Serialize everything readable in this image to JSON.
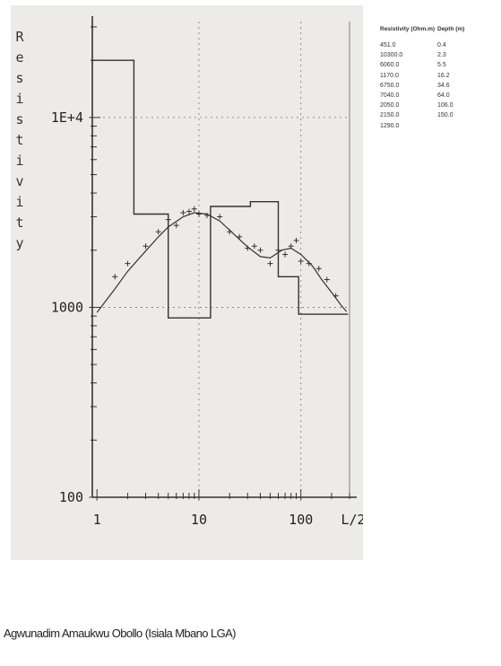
{
  "chart_data": {
    "type": "line",
    "ylabel": "Resistivity",
    "xlabel": "L/2",
    "x_scale": "log",
    "y_scale": "log",
    "xlim": [
      0.9,
      300
    ],
    "ylim": [
      100,
      32000
    ],
    "x_ticks": [
      "1",
      "10",
      "100"
    ],
    "y_ticks": [
      "1E+4",
      "1000",
      "100"
    ],
    "grid": true,
    "layer_model": {
      "name": "",
      "steps": [
        {
          "depth_top": 0.9,
          "depth_bottom": 2.3,
          "resistivity": 20000
        },
        {
          "depth_top": 2.3,
          "depth_bottom": 5.0,
          "resistivity": 3100
        },
        {
          "depth_top": 5.0,
          "depth_bottom": 13.0,
          "resistivity": 880
        },
        {
          "depth_top": 13.0,
          "depth_bottom": 32.0,
          "resistivity": 3400
        },
        {
          "depth_top": 32.0,
          "depth_bottom": 60.0,
          "resistivity": 3600
        },
        {
          "depth_top": 60.0,
          "depth_bottom": 95.0,
          "resistivity": 1450
        },
        {
          "depth_top": 95.0,
          "depth_bottom": 290.0,
          "resistivity": 920
        }
      ]
    },
    "fitted_curve": {
      "name": "",
      "x": [
        1,
        1.5,
        2,
        3,
        4,
        5,
        7,
        9,
        12,
        16,
        20,
        25,
        30,
        40,
        50,
        65,
        80,
        100,
        130,
        160,
        200,
        250,
        280
      ],
      "y": [
        940,
        1250,
        1550,
        1980,
        2350,
        2650,
        3000,
        3150,
        3100,
        2850,
        2550,
        2280,
        2080,
        1850,
        1820,
        2000,
        2050,
        1900,
        1650,
        1400,
        1200,
        1020,
        950
      ]
    },
    "observed_points": {
      "name": "",
      "x": [
        1.5,
        2,
        3,
        4,
        5,
        6,
        7,
        8,
        9,
        10,
        12,
        16,
        20,
        25,
        30,
        35,
        40,
        50,
        60,
        70,
        80,
        90,
        100,
        120,
        150,
        180,
        220
      ],
      "y": [
        1450,
        1700,
        2100,
        2500,
        2900,
        2700,
        3150,
        3200,
        3300,
        3100,
        3050,
        3000,
        2500,
        2350,
        2050,
        2100,
        2000,
        1700,
        2000,
        1900,
        2100,
        2250,
        1750,
        1700,
        1600,
        1400,
        1150
      ]
    }
  },
  "table": {
    "headers": [
      "Resistivity (Ohm.m)",
      "Depth (m)"
    ],
    "rows": [
      [
        "451.0",
        "0.4"
      ],
      [
        "10300.0",
        "2.3"
      ],
      [
        "6060.0",
        "5.5"
      ],
      [
        "1170.0",
        "16.2"
      ],
      [
        "6750.0",
        "34.6"
      ],
      [
        "7040.0",
        "64.0"
      ],
      [
        "2050.0",
        "106.0"
      ],
      [
        "2150.0",
        "150.0"
      ],
      [
        "1290.0",
        ""
      ]
    ]
  },
  "caption": "Agwunadim Amaukwu Obollo (Isiala Mbano LGA)"
}
